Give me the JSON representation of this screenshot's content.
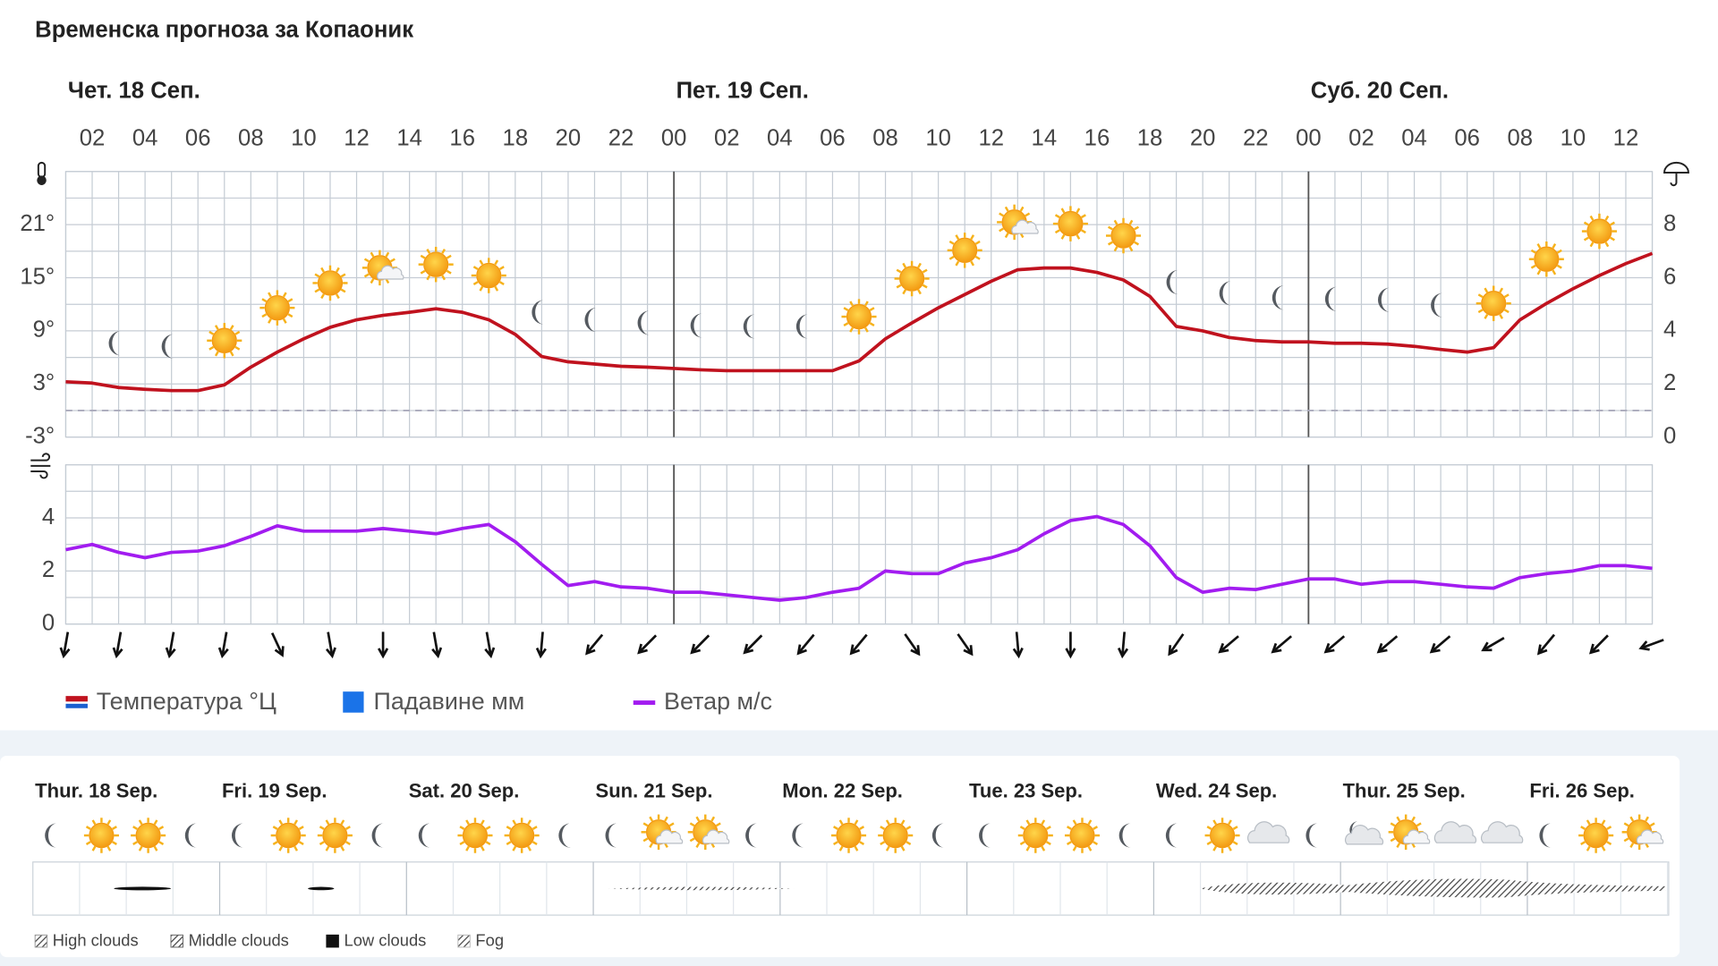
{
  "title": "Временска прогноза за Копаоник",
  "days": [
    {
      "label": "Чет. 18 Сеп.",
      "start": 0
    },
    {
      "label": "Пет. 19 Сеп.",
      "start": 24
    },
    {
      "label": "Суб. 20 Сеп.",
      "start": 48
    }
  ],
  "chart_data": [
    {
      "type": "line",
      "x": [
        1,
        2,
        3,
        4,
        5,
        6,
        7,
        8,
        9,
        10,
        11,
        12,
        13,
        14,
        15,
        16,
        17,
        18,
        19,
        20,
        21,
        22,
        23,
        24,
        25,
        26,
        27,
        28,
        29,
        30,
        31,
        32,
        33,
        34,
        35,
        36,
        37,
        38,
        39,
        40,
        41,
        42,
        43,
        44,
        45,
        46,
        47,
        48,
        49,
        50,
        51,
        52,
        53,
        54,
        55,
        56,
        57,
        58,
        59,
        60,
        61
      ],
      "xlim": [
        1,
        61
      ],
      "xticks": [
        {
          "value": 2,
          "label": "02"
        },
        {
          "value": 4,
          "label": "04"
        },
        {
          "value": 6,
          "label": "06"
        },
        {
          "value": 8,
          "label": "08"
        },
        {
          "value": 10,
          "label": "10"
        },
        {
          "value": 12,
          "label": "12"
        },
        {
          "value": 14,
          "label": "14"
        },
        {
          "value": 16,
          "label": "16"
        },
        {
          "value": 18,
          "label": "18"
        },
        {
          "value": 20,
          "label": "20"
        },
        {
          "value": 22,
          "label": "22"
        },
        {
          "value": 24,
          "label": "00"
        },
        {
          "value": 26,
          "label": "02"
        },
        {
          "value": 28,
          "label": "04"
        },
        {
          "value": 30,
          "label": "06"
        },
        {
          "value": 32,
          "label": "08"
        },
        {
          "value": 34,
          "label": "10"
        },
        {
          "value": 36,
          "label": "12"
        },
        {
          "value": 38,
          "label": "14"
        },
        {
          "value": 40,
          "label": "16"
        },
        {
          "value": 42,
          "label": "18"
        },
        {
          "value": 44,
          "label": "20"
        },
        {
          "value": 46,
          "label": "22"
        },
        {
          "value": 48,
          "label": "00"
        },
        {
          "value": 50,
          "label": "02"
        },
        {
          "value": 52,
          "label": "04"
        },
        {
          "value": 54,
          "label": "06"
        },
        {
          "value": 56,
          "label": "08"
        },
        {
          "value": 58,
          "label": "10"
        },
        {
          "value": 60,
          "label": "12"
        }
      ],
      "ylim": [
        -3,
        27
      ],
      "yticks": [
        {
          "value": -3,
          "label": "-3°"
        },
        {
          "value": 3,
          "label": "3°"
        },
        {
          "value": 9,
          "label": "9°"
        },
        {
          "value": 15,
          "label": "15°"
        },
        {
          "value": 21,
          "label": "21°"
        }
      ],
      "y2lim": [
        0,
        10
      ],
      "y2ticks": [
        0,
        2,
        4,
        6,
        8
      ],
      "reference_line": 0,
      "grid": true,
      "series": [
        {
          "name": "Температура °Ц",
          "color": "#c0121e",
          "values": [
            3.25,
            3.1,
            2.6,
            2.4,
            2.25,
            2.25,
            2.9,
            4.9,
            6.6,
            8.1,
            9.4,
            10.25,
            10.75,
            11.1,
            11.5,
            11.1,
            10.25,
            8.6,
            6.1,
            5.5,
            5.25,
            5,
            4.9,
            4.75,
            4.6,
            4.5,
            4.5,
            4.5,
            4.5,
            4.5,
            5.6,
            8.1,
            9.9,
            11.6,
            13.1,
            14.6,
            15.9,
            16.1,
            16.1,
            15.6,
            14.75,
            12.9,
            9.5,
            9,
            8.25,
            7.9,
            7.75,
            7.75,
            7.6,
            7.6,
            7.5,
            7.25,
            6.9,
            6.6,
            7.1,
            10.25,
            12.1,
            13.75,
            15.25,
            16.6,
            17.75
          ]
        },
        {
          "name": "Падавине мм",
          "color": "#1a73e8",
          "axis": "y2",
          "values": [
            0,
            0,
            0,
            0,
            0,
            0,
            0,
            0,
            0,
            0,
            0,
            0,
            0,
            0,
            0,
            0,
            0,
            0,
            0,
            0,
            0,
            0,
            0,
            0,
            0,
            0,
            0,
            0,
            0,
            0,
            0,
            0,
            0,
            0,
            0,
            0,
            0,
            0,
            0,
            0,
            0,
            0,
            0,
            0,
            0,
            0,
            0,
            0,
            0,
            0,
            0,
            0,
            0,
            0,
            0,
            0,
            0,
            0,
            0,
            0,
            0
          ]
        }
      ],
      "icon_x": [
        3,
        5,
        7,
        9,
        11,
        13,
        15,
        17,
        19,
        21,
        23,
        25,
        27,
        29,
        31,
        33,
        35,
        37,
        39,
        41,
        43,
        45,
        47,
        49,
        51,
        53,
        55,
        57,
        59
      ],
      "icons": [
        "moon",
        "moon",
        "sun",
        "sun",
        "sun",
        "partly",
        "sun",
        "sun",
        "moon",
        "moon",
        "moon",
        "moon",
        "moon",
        "moon",
        "sun",
        "sun",
        "sun",
        "partly",
        "sun",
        "sun",
        "moon",
        "moon",
        "moon",
        "moon",
        "moon",
        "moon",
        "sun",
        "sun",
        "sun"
      ]
    },
    {
      "type": "line",
      "x": [
        1,
        2,
        3,
        4,
        5,
        6,
        7,
        8,
        9,
        10,
        11,
        12,
        13,
        14,
        15,
        16,
        17,
        18,
        19,
        20,
        21,
        22,
        23,
        24,
        25,
        26,
        27,
        28,
        29,
        30,
        31,
        32,
        33,
        34,
        35,
        36,
        37,
        38,
        39,
        40,
        41,
        42,
        43,
        44,
        45,
        46,
        47,
        48,
        49,
        50,
        51,
        52,
        53,
        54,
        55,
        56,
        57,
        58,
        59,
        60,
        61
      ],
      "xlim": [
        1,
        61
      ],
      "ylim": [
        0,
        6
      ],
      "yticks": [
        0,
        2,
        4
      ],
      "grid": true,
      "series": [
        {
          "name": "Ветар м/с",
          "color": "#a21cf0",
          "values": [
            2.8,
            3,
            2.7,
            2.5,
            2.7,
            2.75,
            2.95,
            3.3,
            3.7,
            3.5,
            3.5,
            3.5,
            3.6,
            3.5,
            3.4,
            3.6,
            3.75,
            3.1,
            2.25,
            1.45,
            1.6,
            1.4,
            1.35,
            1.2,
            1.2,
            1.1,
            1,
            0.9,
            1,
            1.2,
            1.35,
            2,
            1.9,
            1.9,
            2.3,
            2.5,
            2.8,
            3.4,
            3.9,
            4.05,
            3.75,
            2.95,
            1.75,
            1.2,
            1.35,
            1.3,
            1.5,
            1.7,
            1.7,
            1.5,
            1.6,
            1.6,
            1.5,
            1.4,
            1.35,
            1.75,
            1.9,
            2,
            2.2,
            2.2,
            2.1
          ]
        }
      ],
      "direction_x": [
        1,
        3,
        5,
        7,
        9,
        11,
        13,
        15,
        17,
        19,
        21,
        23,
        25,
        27,
        29,
        31,
        33,
        35,
        37,
        39,
        41,
        43,
        45,
        47,
        49,
        51,
        53,
        55,
        57,
        59,
        61
      ],
      "wind_direction": [
        10,
        10,
        10,
        10,
        -25,
        -10,
        0,
        -10,
        -10,
        5,
        40,
        45,
        45,
        45,
        40,
        40,
        -35,
        -35,
        -5,
        0,
        5,
        35,
        50,
        50,
        50,
        50,
        50,
        60,
        40,
        45,
        70
      ]
    }
  ],
  "daily": {
    "days": [
      "Thur. 18 Sep.",
      "Fri. 19 Sep.",
      "Sat. 20 Sep.",
      "Sun. 21 Sep.",
      "Mon. 22 Sep.",
      "Tue. 23 Sep.",
      "Wed. 24 Sep.",
      "Thur. 25 Sep.",
      "Fri. 26 Sep."
    ],
    "icons": [
      "moon",
      "sun",
      "sun",
      "moon",
      "moon",
      "sun",
      "sun",
      "moon",
      "moon",
      "sun",
      "sun",
      "moon",
      "moon",
      "partly",
      "partly",
      "moon",
      "moon",
      "sun",
      "sun",
      "moon",
      "moon",
      "sun",
      "sun",
      "moon",
      "moon",
      "sun",
      "cloud",
      "moon",
      "nightcloud",
      "partly",
      "cloud",
      "cloud",
      "moon",
      "sun",
      "partly"
    ]
  },
  "cloud_legend": [
    "High clouds",
    "Middle clouds",
    "Low clouds",
    "Fog"
  ]
}
